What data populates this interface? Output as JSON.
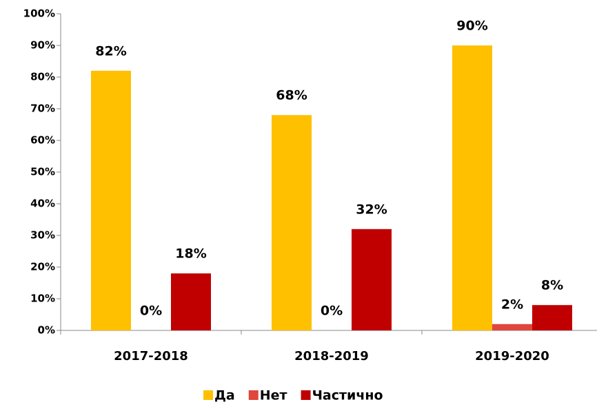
{
  "chart_data": {
    "type": "bar",
    "categories": [
      "2017-2018",
      "2018-2019",
      "2019-2020"
    ],
    "series": [
      {
        "name": "Да",
        "color": "#ffc000",
        "values": [
          82,
          68,
          90
        ],
        "value_labels": [
          "82%",
          "68%",
          "90%"
        ]
      },
      {
        "name": "Нет",
        "color": "#e0463c",
        "values": [
          0,
          0,
          2
        ],
        "value_labels": [
          "0%",
          "0%",
          "2%"
        ]
      },
      {
        "name": "Частично",
        "color": "#c00000",
        "values": [
          18,
          32,
          8
        ],
        "value_labels": [
          "18%",
          "32%",
          "8%"
        ]
      }
    ],
    "ylim": [
      0,
      100
    ],
    "yticks": [
      {
        "value": 0,
        "label": "0%"
      },
      {
        "value": 10,
        "label": "10%"
      },
      {
        "value": 20,
        "label": "20%"
      },
      {
        "value": 30,
        "label": "30%"
      },
      {
        "value": 40,
        "label": "40%"
      },
      {
        "value": 50,
        "label": "50%"
      },
      {
        "value": 60,
        "label": "60%"
      },
      {
        "value": 70,
        "label": "70%"
      },
      {
        "value": 80,
        "label": "80%"
      },
      {
        "value": 90,
        "label": "90%"
      },
      {
        "value": 100,
        "label": "100%"
      }
    ],
    "grid": false,
    "legend": "bottom"
  }
}
